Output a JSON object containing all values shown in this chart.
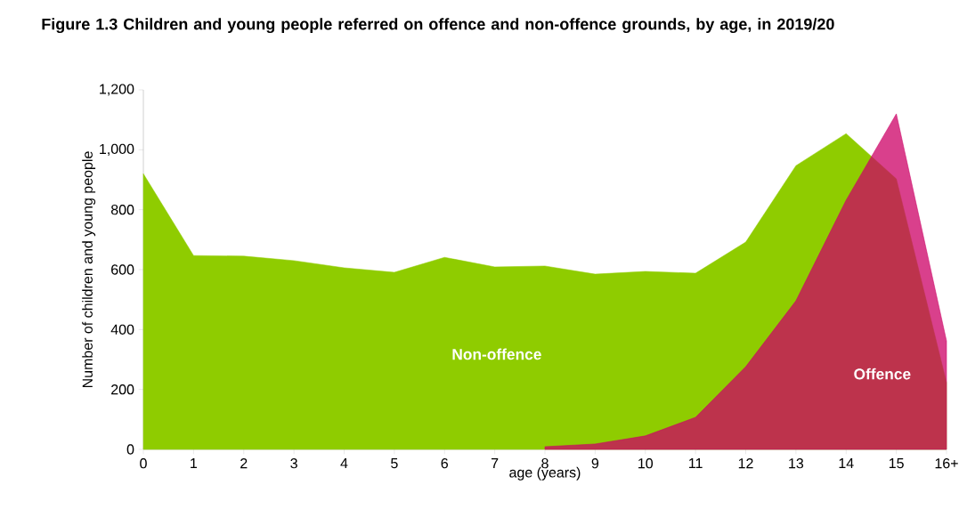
{
  "chart_data": {
    "type": "area",
    "title": "Figure 1.3 Children and young people referred on offence and non-offence grounds, by age, in 2019/20",
    "xlabel": "age (years)",
    "ylabel": "Number of children and young people",
    "categories": [
      "0",
      "1",
      "2",
      "3",
      "4",
      "5",
      "6",
      "7",
      "8",
      "9",
      "10",
      "11",
      "12",
      "13",
      "14",
      "15",
      "16+"
    ],
    "series": [
      {
        "name": "Non-offence",
        "color": "#8fcc00",
        "values": [
          920,
          647,
          645,
          630,
          606,
          591,
          641,
          609,
          612,
          585,
          594,
          588,
          692,
          947,
          1054,
          903,
          223
        ]
      },
      {
        "name": "Offence",
        "color": "#cc0066",
        "values": [
          null,
          null,
          null,
          null,
          null,
          null,
          null,
          null,
          9,
          18,
          45,
          107,
          276,
          496,
          832,
          1120,
          362
        ]
      }
    ],
    "ylim": [
      0,
      1200
    ],
    "yticks": [
      0,
      200,
      400,
      600,
      800,
      {
        "value": 1000,
        "label": "1,000"
      },
      {
        "value": 1200,
        "label": "1,200"
      }
    ],
    "grid": false,
    "legend": false
  }
}
